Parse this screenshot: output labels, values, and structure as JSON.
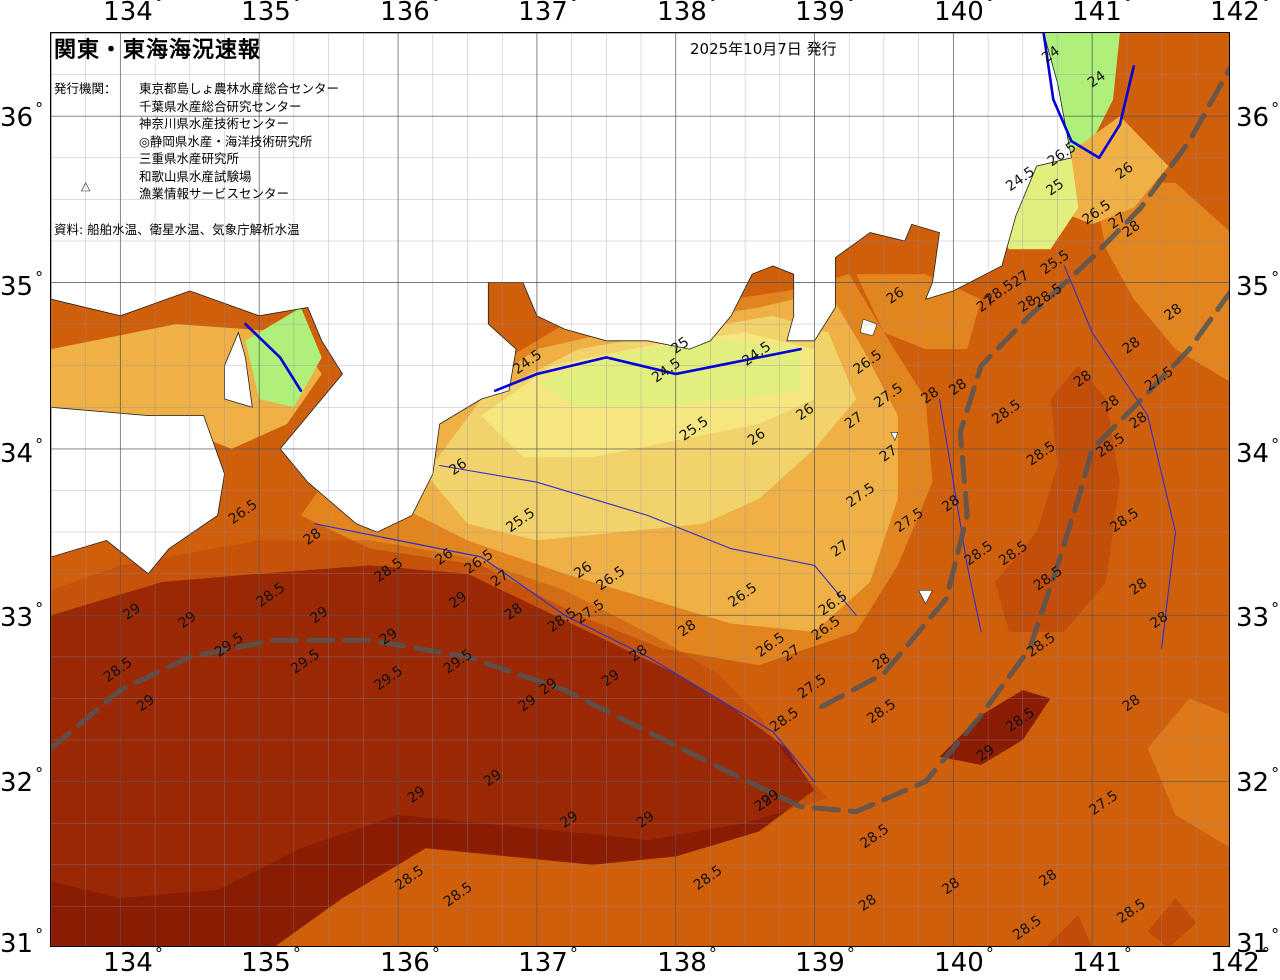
{
  "header": {
    "title": "関東・東海海況速報",
    "issue_date": "2025年10月7日 発行",
    "org_label": "発行機関：",
    "organizations": [
      "東京都島しょ農林水産総合センター",
      "千葉県水産総合研究センター",
      "神奈川県水産技術センター",
      "◎静岡県水産・海洋技術研究所",
      "三重県水産研究所",
      "和歌山県水産試験場",
      "漁業情報サービスセンター"
    ],
    "source": "資料: 船舶水温、衛星水温、気象庁解析水温"
  },
  "axes": {
    "lon_labels": [
      "134",
      "135",
      "136",
      "137",
      "138",
      "139",
      "140",
      "141",
      "142"
    ],
    "lat_labels": [
      "36",
      "35",
      "34",
      "33",
      "32",
      "31"
    ],
    "degree_symbol": "°"
  },
  "map": {
    "region": "Kanto-Tokai coastal waters",
    "lon_range": [
      133.5,
      142.0
    ],
    "lat_range": [
      31.0,
      36.5
    ],
    "colors": {
      "land": "#ffffff",
      "t24": "#aef07a",
      "t24_5": "#e2ef7e",
      "t25": "#f5e680",
      "t25_5": "#f2d26a",
      "t26": "#efb045",
      "t27": "#e2851f",
      "t28": "#d05f0c",
      "t28_5": "#b8400a",
      "t29": "#8a1c04",
      "contour_24": "#0000dd",
      "contour_other": "#3030cc",
      "kuroshio": "#555555"
    },
    "isotherm_labels": [
      {
        "text": "24",
        "lon": 140.72,
        "lat": 36.35
      },
      {
        "text": "24",
        "lon": 141.05,
        "lat": 36.2
      },
      {
        "text": "24.5",
        "lon": 140.5,
        "lat": 35.6
      },
      {
        "text": "25",
        "lon": 140.75,
        "lat": 35.55
      },
      {
        "text": "25.5",
        "lon": 140.75,
        "lat": 35.1
      },
      {
        "text": "26.5",
        "lon": 140.8,
        "lat": 35.75
      },
      {
        "text": "26.5",
        "lon": 141.05,
        "lat": 35.4
      },
      {
        "text": "27",
        "lon": 141.2,
        "lat": 35.35
      },
      {
        "text": "28",
        "lon": 141.3,
        "lat": 35.3
      },
      {
        "text": "26",
        "lon": 141.25,
        "lat": 35.65
      },
      {
        "text": "25",
        "lon": 138.05,
        "lat": 34.6
      },
      {
        "text": "24.5",
        "lon": 137.95,
        "lat": 34.45
      },
      {
        "text": "24.5",
        "lon": 138.6,
        "lat": 34.55
      },
      {
        "text": "24.5",
        "lon": 136.95,
        "lat": 34.5
      },
      {
        "text": "25.5",
        "lon": 138.15,
        "lat": 34.1
      },
      {
        "text": "26",
        "lon": 138.6,
        "lat": 34.05
      },
      {
        "text": "26",
        "lon": 138.95,
        "lat": 34.2
      },
      {
        "text": "26",
        "lon": 136.45,
        "lat": 33.87
      },
      {
        "text": "25.5",
        "lon": 136.9,
        "lat": 33.55
      },
      {
        "text": "26",
        "lon": 136.35,
        "lat": 33.33
      },
      {
        "text": "26.5",
        "lon": 136.6,
        "lat": 33.3
      },
      {
        "text": "26",
        "lon": 137.35,
        "lat": 33.25
      },
      {
        "text": "26.5",
        "lon": 137.55,
        "lat": 33.2
      },
      {
        "text": "26.5",
        "lon": 134.9,
        "lat": 33.6
      },
      {
        "text": "28",
        "lon": 135.4,
        "lat": 33.45
      },
      {
        "text": "28.5",
        "lon": 135.1,
        "lat": 33.1
      },
      {
        "text": "28.5",
        "lon": 135.95,
        "lat": 33.25
      },
      {
        "text": "29",
        "lon": 134.5,
        "lat": 32.95
      },
      {
        "text": "29",
        "lon": 134.1,
        "lat": 33.0
      },
      {
        "text": "28.5",
        "lon": 134.0,
        "lat": 32.65
      },
      {
        "text": "29.5",
        "lon": 134.8,
        "lat": 32.8
      },
      {
        "text": "29.5",
        "lon": 135.35,
        "lat": 32.7
      },
      {
        "text": "29",
        "lon": 135.45,
        "lat": 32.98
      },
      {
        "text": "29",
        "lon": 134.2,
        "lat": 32.45
      },
      {
        "text": "29",
        "lon": 135.95,
        "lat": 32.85
      },
      {
        "text": "29.5",
        "lon": 135.95,
        "lat": 32.6
      },
      {
        "text": "29.5",
        "lon": 136.45,
        "lat": 32.7
      },
      {
        "text": "29",
        "lon": 136.45,
        "lat": 33.07
      },
      {
        "text": "27",
        "lon": 136.75,
        "lat": 33.2
      },
      {
        "text": "28",
        "lon": 136.85,
        "lat": 33.0
      },
      {
        "text": "28.5",
        "lon": 137.2,
        "lat": 32.95
      },
      {
        "text": "29",
        "lon": 137.1,
        "lat": 32.55
      },
      {
        "text": "29",
        "lon": 136.95,
        "lat": 32.45
      },
      {
        "text": "29",
        "lon": 137.55,
        "lat": 32.6
      },
      {
        "text": "27.5",
        "lon": 137.4,
        "lat": 33.0
      },
      {
        "text": "28",
        "lon": 137.75,
        "lat": 32.75
      },
      {
        "text": "28",
        "lon": 138.1,
        "lat": 32.9
      },
      {
        "text": "26.5",
        "lon": 138.5,
        "lat": 33.1
      },
      {
        "text": "26.5",
        "lon": 139.15,
        "lat": 33.05
      },
      {
        "text": "26.5",
        "lon": 139.1,
        "lat": 32.9
      },
      {
        "text": "26.5",
        "lon": 138.7,
        "lat": 32.8
      },
      {
        "text": "27",
        "lon": 138.85,
        "lat": 32.75
      },
      {
        "text": "27.5",
        "lon": 139.0,
        "lat": 32.55
      },
      {
        "text": "28",
        "lon": 139.5,
        "lat": 32.7
      },
      {
        "text": "28.5",
        "lon": 139.5,
        "lat": 32.4
      },
      {
        "text": "28.5",
        "lon": 138.8,
        "lat": 32.35
      },
      {
        "text": "26.5",
        "lon": 139.4,
        "lat": 34.5
      },
      {
        "text": "26",
        "lon": 139.6,
        "lat": 34.9
      },
      {
        "text": "27.5",
        "lon": 139.55,
        "lat": 34.3
      },
      {
        "text": "27",
        "lon": 139.3,
        "lat": 34.15
      },
      {
        "text": "28",
        "lon": 139.85,
        "lat": 34.3
      },
      {
        "text": "27",
        "lon": 139.55,
        "lat": 33.95
      },
      {
        "text": "27.5",
        "lon": 139.35,
        "lat": 33.7
      },
      {
        "text": "27.5",
        "lon": 139.7,
        "lat": 33.55
      },
      {
        "text": "27",
        "lon": 139.2,
        "lat": 33.38
      },
      {
        "text": "28",
        "lon": 140.05,
        "lat": 34.35
      },
      {
        "text": "28.5",
        "lon": 140.4,
        "lat": 34.2
      },
      {
        "text": "28",
        "lon": 140.0,
        "lat": 33.65
      },
      {
        "text": "28.5",
        "lon": 140.2,
        "lat": 33.35
      },
      {
        "text": "28.5",
        "lon": 140.45,
        "lat": 33.35
      },
      {
        "text": "28.5",
        "lon": 140.65,
        "lat": 33.95
      },
      {
        "text": "28.5",
        "lon": 140.7,
        "lat": 33.2
      },
      {
        "text": "28.5",
        "lon": 140.65,
        "lat": 32.8
      },
      {
        "text": "27",
        "lon": 140.25,
        "lat": 34.85
      },
      {
        "text": "28.5",
        "lon": 140.35,
        "lat": 34.92
      },
      {
        "text": "27",
        "lon": 140.5,
        "lat": 35.0
      },
      {
        "text": "28",
        "lon": 140.55,
        "lat": 34.85
      },
      {
        "text": "28.5",
        "lon": 140.7,
        "lat": 34.9
      },
      {
        "text": "28",
        "lon": 140.95,
        "lat": 34.4
      },
      {
        "text": "28",
        "lon": 141.15,
        "lat": 34.25
      },
      {
        "text": "28.5",
        "lon": 141.15,
        "lat": 34.0
      },
      {
        "text": "28",
        "lon": 141.3,
        "lat": 34.6
      },
      {
        "text": "28",
        "lon": 141.35,
        "lat": 34.15
      },
      {
        "text": "28.5",
        "lon": 141.25,
        "lat": 33.55
      },
      {
        "text": "28",
        "lon": 141.35,
        "lat": 33.15
      },
      {
        "text": "28",
        "lon": 141.5,
        "lat": 32.95
      },
      {
        "text": "27.5",
        "lon": 141.5,
        "lat": 34.4
      },
      {
        "text": "28",
        "lon": 141.6,
        "lat": 34.8
      },
      {
        "text": "28",
        "lon": 141.3,
        "lat": 32.45
      },
      {
        "text": "28.5",
        "lon": 140.5,
        "lat": 32.35
      },
      {
        "text": "29",
        "lon": 140.25,
        "lat": 32.15
      },
      {
        "text": "27.5",
        "lon": 141.1,
        "lat": 31.85
      },
      {
        "text": "28.5",
        "lon": 139.45,
        "lat": 31.65
      },
      {
        "text": "28",
        "lon": 140.0,
        "lat": 31.35
      },
      {
        "text": "28",
        "lon": 140.7,
        "lat": 31.4
      },
      {
        "text": "28.5",
        "lon": 140.55,
        "lat": 31.1
      },
      {
        "text": "28.5",
        "lon": 141.3,
        "lat": 31.2
      },
      {
        "text": "28",
        "lon": 139.4,
        "lat": 31.25
      },
      {
        "text": "28.5",
        "lon": 138.25,
        "lat": 31.4
      },
      {
        "text": "29",
        "lon": 137.25,
        "lat": 31.75
      },
      {
        "text": "29",
        "lon": 137.8,
        "lat": 31.75
      },
      {
        "text": "29",
        "lon": 136.7,
        "lat": 32.0
      },
      {
        "text": "29",
        "lon": 136.15,
        "lat": 31.9
      },
      {
        "text": "28.5",
        "lon": 136.1,
        "lat": 31.4
      },
      {
        "text": "28.5",
        "lon": 136.45,
        "lat": 31.3
      },
      {
        "text": "29",
        "lon": 138.65,
        "lat": 31.85
      },
      {
        "text": "29",
        "lon": 138.7,
        "lat": 31.88
      }
    ]
  }
}
